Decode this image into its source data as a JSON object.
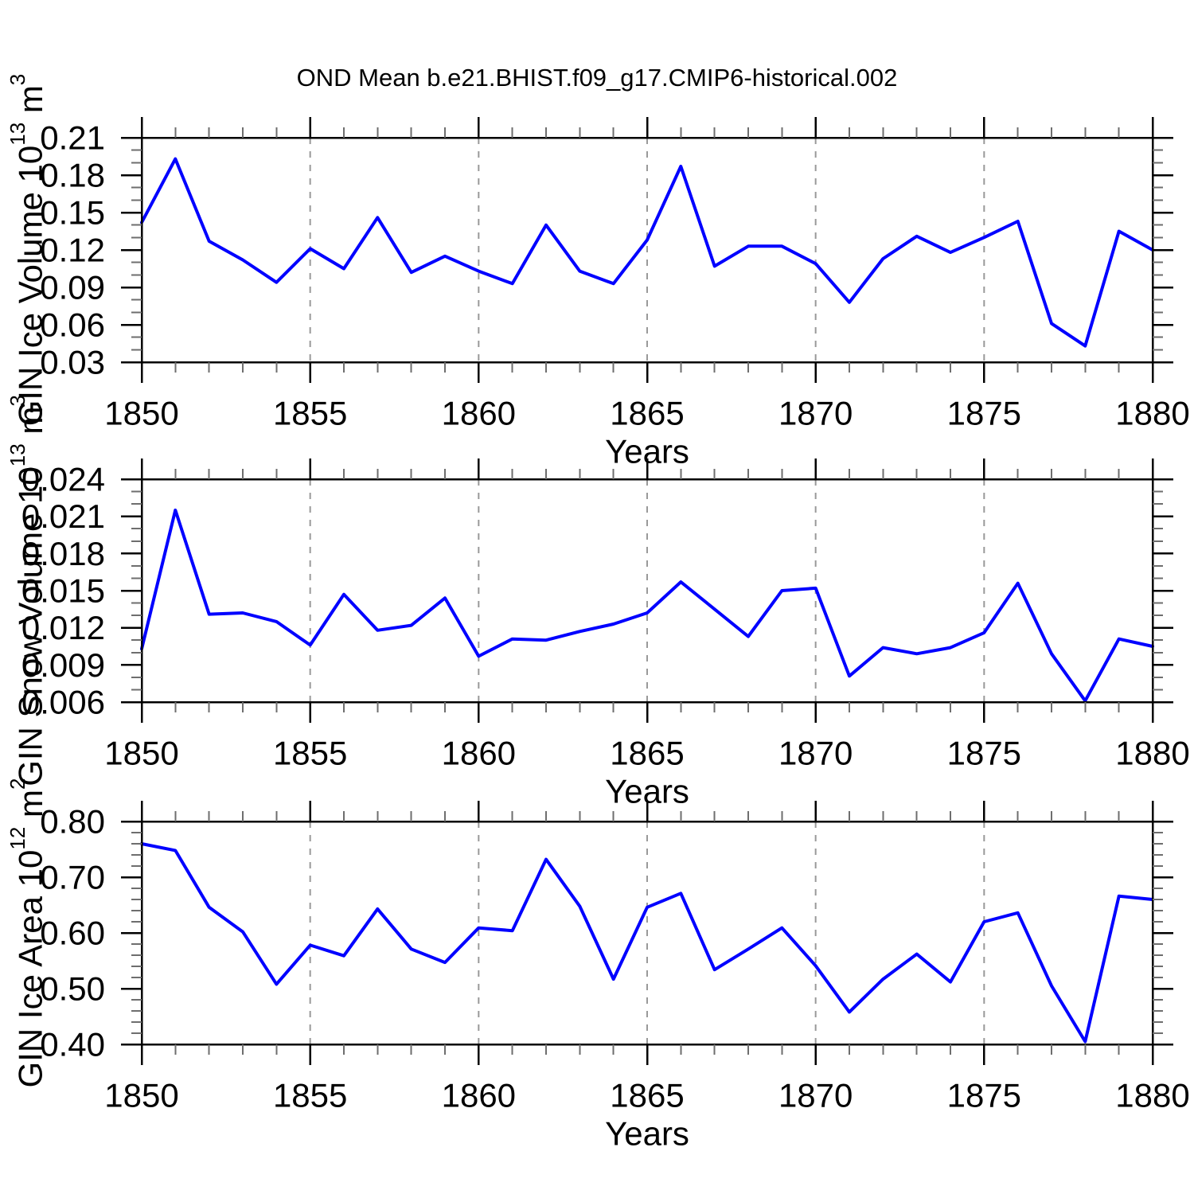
{
  "title": "OND Mean b.e21.BHIST.f09_g17.CMIP6-historical.002",
  "colors": {
    "line": "#0000FF",
    "grid": "#999999",
    "axis": "#000000",
    "minor_tick": "#6E6E6E",
    "background": "#FFFFFF"
  },
  "x_axis": {
    "label": "Years",
    "min": 1850,
    "max": 1880,
    "major_step": 5,
    "minor_step": 1,
    "tick_labels": [
      "1850",
      "1855",
      "1860",
      "1865",
      "1870",
      "1875",
      "1880"
    ],
    "gridline_years": [
      1855,
      1860,
      1865,
      1870,
      1875
    ]
  },
  "chart_data": [
    {
      "type": "line",
      "title": "OND Mean b.e21.BHIST.f09_g17.CMIP6-historical.002",
      "xlabel": "Years",
      "ylabel": "GIN Ice Volume 10^13 m^3",
      "ylabel_parts": {
        "base": "GIN Ice Volume 10",
        "exp": "13",
        "mid": " m",
        "exp2": "3"
      },
      "ylim": [
        0.03,
        0.21
      ],
      "y_major_step": 0.03,
      "y_minor_step": 0.01,
      "y_decimals": 2,
      "y_tick_labels": [
        "0.03",
        "0.06",
        "0.09",
        "0.12",
        "0.15",
        "0.18",
        "0.21"
      ],
      "x": [
        1850,
        1851,
        1852,
        1853,
        1854,
        1855,
        1856,
        1857,
        1858,
        1859,
        1860,
        1861,
        1862,
        1863,
        1864,
        1865,
        1866,
        1867,
        1868,
        1869,
        1870,
        1871,
        1872,
        1873,
        1874,
        1875,
        1876,
        1877,
        1878,
        1879,
        1880
      ],
      "values": [
        0.142,
        0.193,
        0.127,
        0.112,
        0.094,
        0.121,
        0.105,
        0.146,
        0.102,
        0.115,
        0.103,
        0.093,
        0.14,
        0.103,
        0.093,
        0.128,
        0.187,
        0.107,
        0.123,
        0.123,
        0.109,
        0.078,
        0.113,
        0.131,
        0.118,
        0.13,
        0.143,
        0.061,
        0.043,
        0.135,
        0.12
      ]
    },
    {
      "type": "line",
      "title": "",
      "xlabel": "Years",
      "ylabel": "GIN Snow Volume 10^13 m^3",
      "ylabel_parts": {
        "base": "GIN Snow Volume 10",
        "exp": "13",
        "mid": " m",
        "exp2": "3"
      },
      "ylim": [
        0.006,
        0.024
      ],
      "y_major_step": 0.003,
      "y_minor_step": 0.001,
      "y_decimals": 3,
      "y_tick_labels": [
        "0.006",
        "0.009",
        "0.012",
        "0.015",
        "0.018",
        "0.021",
        "0.024"
      ],
      "x": [
        1850,
        1851,
        1852,
        1853,
        1854,
        1855,
        1856,
        1857,
        1858,
        1859,
        1860,
        1861,
        1862,
        1863,
        1864,
        1865,
        1866,
        1867,
        1868,
        1869,
        1870,
        1871,
        1872,
        1873,
        1874,
        1875,
        1876,
        1877,
        1878,
        1879,
        1880
      ],
      "values": [
        0.0103,
        0.0215,
        0.0131,
        0.0132,
        0.0125,
        0.0106,
        0.0147,
        0.0118,
        0.0122,
        0.0144,
        0.0097,
        0.0111,
        0.011,
        0.0117,
        0.0123,
        0.0132,
        0.0157,
        0.0135,
        0.0113,
        0.015,
        0.0152,
        0.0081,
        0.0104,
        0.0099,
        0.0104,
        0.0116,
        0.0156,
        0.0099,
        0.0061,
        0.0111,
        0.0105
      ]
    },
    {
      "type": "line",
      "title": "",
      "xlabel": "Years",
      "ylabel": "GIN Ice Area 10^12 m^2",
      "ylabel_parts": {
        "base": "GIN Ice Area 10",
        "exp": "12",
        "mid": " m",
        "exp2": "2"
      },
      "ylim": [
        0.4,
        0.8
      ],
      "y_major_step": 0.1,
      "y_minor_step": 0.02,
      "y_decimals": 2,
      "y_tick_labels": [
        "0.40",
        "0.50",
        "0.60",
        "0.70",
        "0.80"
      ],
      "x": [
        1850,
        1851,
        1852,
        1853,
        1854,
        1855,
        1856,
        1857,
        1858,
        1859,
        1860,
        1861,
        1862,
        1863,
        1864,
        1865,
        1866,
        1867,
        1868,
        1869,
        1870,
        1871,
        1872,
        1873,
        1874,
        1875,
        1876,
        1877,
        1878,
        1879,
        1880
      ],
      "values": [
        0.76,
        0.748,
        0.646,
        0.602,
        0.508,
        0.578,
        0.559,
        0.643,
        0.571,
        0.547,
        0.609,
        0.604,
        0.732,
        0.648,
        0.517,
        0.646,
        0.671,
        0.534,
        0.571,
        0.609,
        0.541,
        0.458,
        0.517,
        0.562,
        0.512,
        0.62,
        0.636,
        0.505,
        0.405,
        0.666,
        0.66
      ]
    }
  ]
}
